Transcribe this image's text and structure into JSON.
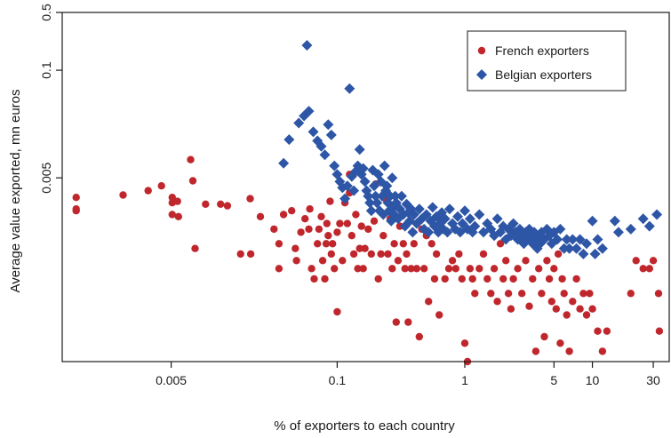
{
  "chart_data": {
    "type": "scatter",
    "title": "",
    "xlabel": "% of exporters to each country",
    "ylabel": "Average value exported, mn euros",
    "x_scale": "log",
    "y_scale": "log",
    "xlim": [
      0.0007,
      40
    ],
    "ylim": [
      3e-05,
      0.5
    ],
    "x_ticks": [
      0.005,
      0.1,
      1,
      5,
      10,
      30
    ],
    "x_tick_labels": [
      "0.005",
      "0.1",
      "1",
      "5",
      "10",
      "30"
    ],
    "y_ticks": [
      0.005,
      0.1,
      0.5
    ],
    "y_tick_labels": [
      "0.005",
      "0.1",
      "0.5"
    ],
    "grid": false,
    "legend_position": "top-right",
    "series": [
      {
        "name": "French exporters",
        "color": "#c0272d",
        "marker": "circle",
        "points": [
          [
            0.0009,
            0.0029
          ],
          [
            0.0009,
            0.0021
          ],
          [
            0.0009,
            0.002
          ],
          [
            0.0021,
            0.0031
          ],
          [
            0.0033,
            0.0035
          ],
          [
            0.0042,
            0.004
          ],
          [
            0.0051,
            0.0029
          ],
          [
            0.0051,
            0.0025
          ],
          [
            0.0051,
            0.0018
          ],
          [
            0.0056,
            0.0026
          ],
          [
            0.0057,
            0.0017
          ],
          [
            0.0071,
            0.0083
          ],
          [
            0.0074,
            0.0046
          ],
          [
            0.0077,
            0.0007
          ],
          [
            0.0093,
            0.0024
          ],
          [
            0.0122,
            0.0024
          ],
          [
            0.0138,
            0.0023
          ],
          [
            0.0175,
            0.0006
          ],
          [
            0.0208,
            0.0028
          ],
          [
            0.021,
            0.0006
          ],
          [
            0.025,
            0.0017
          ],
          [
            0.032,
            0.0012
          ],
          [
            0.035,
            0.0008
          ],
          [
            0.035,
            0.0004
          ],
          [
            0.038,
            0.0018
          ],
          [
            0.044,
            0.002
          ],
          [
            0.047,
            0.0007
          ],
          [
            0.048,
            0.0005
          ],
          [
            0.052,
            0.0011
          ],
          [
            0.056,
            0.0016
          ],
          [
            0.06,
            0.0012
          ],
          [
            0.061,
            0.0021
          ],
          [
            0.063,
            0.0004
          ],
          [
            0.066,
            0.0003
          ],
          [
            0.07,
            0.0008
          ],
          [
            0.072,
            0.0012
          ],
          [
            0.075,
            0.0017
          ],
          [
            0.077,
            0.0005
          ],
          [
            0.08,
            0.0003
          ],
          [
            0.082,
            0.0008
          ],
          [
            0.083,
            0.0014
          ],
          [
            0.085,
            0.001
          ],
          [
            0.088,
            0.0026
          ],
          [
            0.09,
            0.0006
          ],
          [
            0.092,
            0.0008
          ],
          [
            0.095,
            0.0004
          ],
          [
            0.1,
            0.0011
          ],
          [
            0.1,
            0.00012
          ],
          [
            0.105,
            0.0014
          ],
          [
            0.11,
            0.0005
          ],
          [
            0.115,
            0.0025
          ],
          [
            0.12,
            0.0014
          ],
          [
            0.125,
            0.0055
          ],
          [
            0.125,
            0.0033
          ],
          [
            0.13,
            0.001
          ],
          [
            0.135,
            0.0006
          ],
          [
            0.14,
            0.0018
          ],
          [
            0.145,
            0.0004
          ],
          [
            0.15,
            0.0007
          ],
          [
            0.155,
            0.0013
          ],
          [
            0.16,
            0.0004
          ],
          [
            0.165,
            0.0007
          ],
          [
            0.175,
            0.0012
          ],
          [
            0.185,
            0.0006
          ],
          [
            0.195,
            0.0015
          ],
          [
            0.2,
            0.0042
          ],
          [
            0.21,
            0.0003
          ],
          [
            0.22,
            0.0006
          ],
          [
            0.23,
            0.001
          ],
          [
            0.24,
            0.0028
          ],
          [
            0.25,
            0.0006
          ],
          [
            0.26,
            0.0016
          ],
          [
            0.27,
            0.0004
          ],
          [
            0.28,
            0.0008
          ],
          [
            0.29,
            9e-05
          ],
          [
            0.3,
            0.0005
          ],
          [
            0.31,
            0.0013
          ],
          [
            0.33,
            0.0008
          ],
          [
            0.34,
            0.0004
          ],
          [
            0.35,
            0.0006
          ],
          [
            0.36,
            9e-05
          ],
          [
            0.38,
            0.0004
          ],
          [
            0.4,
            0.0008
          ],
          [
            0.42,
            0.0004
          ],
          [
            0.44,
            6e-05
          ],
          [
            0.46,
            0.0012
          ],
          [
            0.48,
            0.0004
          ],
          [
            0.5,
            0.001
          ],
          [
            0.52,
            0.00016
          ],
          [
            0.55,
            0.0008
          ],
          [
            0.58,
            0.0003
          ],
          [
            0.6,
            0.0006
          ],
          [
            0.63,
            0.00011
          ],
          [
            0.66,
            0.0016
          ],
          [
            0.7,
            0.0003
          ],
          [
            0.75,
            0.0004
          ],
          [
            0.8,
            0.0005
          ],
          [
            0.85,
            0.0004
          ],
          [
            0.9,
            0.0006
          ],
          [
            0.95,
            0.0003
          ],
          [
            1.0,
            5e-05
          ],
          [
            1.05,
            3e-05
          ],
          [
            1.1,
            0.0004
          ],
          [
            1.15,
            0.0003
          ],
          [
            1.2,
            0.0002
          ],
          [
            1.3,
            0.0004
          ],
          [
            1.4,
            0.0006
          ],
          [
            1.5,
            0.0003
          ],
          [
            1.6,
            0.0002
          ],
          [
            1.7,
            0.0004
          ],
          [
            1.8,
            0.00016
          ],
          [
            1.9,
            0.0008
          ],
          [
            2.0,
            0.0003
          ],
          [
            2.1,
            0.0005
          ],
          [
            2.2,
            0.0002
          ],
          [
            2.3,
            0.00013
          ],
          [
            2.4,
            0.0003
          ],
          [
            2.6,
            0.0004
          ],
          [
            2.8,
            0.0002
          ],
          [
            3.0,
            0.0005
          ],
          [
            3.2,
            0.00014
          ],
          [
            3.4,
            0.0003
          ],
          [
            3.6,
            4e-05
          ],
          [
            3.8,
            0.0004
          ],
          [
            4.0,
            0.0002
          ],
          [
            4.2,
            6e-05
          ],
          [
            4.4,
            0.0005
          ],
          [
            4.6,
            0.0003
          ],
          [
            4.8,
            0.00016
          ],
          [
            5.0,
            0.0004
          ],
          [
            5.2,
            0.00013
          ],
          [
            5.4,
            0.0006
          ],
          [
            5.6,
            5e-05
          ],
          [
            5.8,
            0.0003
          ],
          [
            6.0,
            0.0002
          ],
          [
            6.3,
            0.00011
          ],
          [
            6.6,
            4e-05
          ],
          [
            7.0,
            0.00016
          ],
          [
            7.5,
            0.0003
          ],
          [
            8.0,
            0.00013
          ],
          [
            8.5,
            0.0002
          ],
          [
            9.0,
            0.00011
          ],
          [
            9.5,
            0.0002
          ],
          [
            10.0,
            0.00013
          ],
          [
            11.0,
            7e-05
          ],
          [
            12.0,
            4e-05
          ],
          [
            13.0,
            7e-05
          ],
          [
            20.0,
            0.0002
          ],
          [
            22.0,
            0.0005
          ],
          [
            25.0,
            0.0004
          ],
          [
            28.0,
            0.0004
          ],
          [
            30.0,
            0.0005
          ],
          [
            33.0,
            0.0002
          ],
          [
            33.5,
            7e-05
          ]
        ]
      },
      {
        "name": "Belgian exporters",
        "color": "#2e56a6",
        "marker": "diamond",
        "points": [
          [
            0.058,
            0.2
          ],
          [
            0.038,
            0.0075
          ],
          [
            0.042,
            0.0145
          ],
          [
            0.05,
            0.023
          ],
          [
            0.055,
            0.028
          ],
          [
            0.06,
            0.032
          ],
          [
            0.065,
            0.018
          ],
          [
            0.07,
            0.014
          ],
          [
            0.075,
            0.012
          ],
          [
            0.08,
            0.0095
          ],
          [
            0.085,
            0.022
          ],
          [
            0.09,
            0.0165
          ],
          [
            0.095,
            0.007
          ],
          [
            0.1,
            0.0055
          ],
          [
            0.105,
            0.0045
          ],
          [
            0.11,
            0.0038
          ],
          [
            0.115,
            0.0028
          ],
          [
            0.12,
            0.004
          ],
          [
            0.125,
            0.06
          ],
          [
            0.13,
            0.0052
          ],
          [
            0.135,
            0.0035
          ],
          [
            0.14,
            0.006
          ],
          [
            0.145,
            0.007
          ],
          [
            0.15,
            0.011
          ],
          [
            0.155,
            0.0055
          ],
          [
            0.16,
            0.0065
          ],
          [
            0.165,
            0.0045
          ],
          [
            0.17,
            0.0035
          ],
          [
            0.175,
            0.003
          ],
          [
            0.18,
            0.0025
          ],
          [
            0.185,
            0.002
          ],
          [
            0.19,
            0.0062
          ],
          [
            0.195,
            0.004
          ],
          [
            0.2,
            0.003
          ],
          [
            0.205,
            0.0025
          ],
          [
            0.21,
            0.0055
          ],
          [
            0.215,
            0.002
          ],
          [
            0.22,
            0.0045
          ],
          [
            0.225,
            0.003
          ],
          [
            0.23,
            0.0018
          ],
          [
            0.235,
            0.007
          ],
          [
            0.24,
            0.0035
          ],
          [
            0.245,
            0.004
          ],
          [
            0.25,
            0.0025
          ],
          [
            0.255,
            0.002
          ],
          [
            0.26,
            0.003
          ],
          [
            0.265,
            0.0015
          ],
          [
            0.27,
            0.005
          ],
          [
            0.275,
            0.0022
          ],
          [
            0.28,
            0.0018
          ],
          [
            0.285,
            0.003
          ],
          [
            0.29,
            0.0025
          ],
          [
            0.3,
            0.0016
          ],
          [
            0.31,
            0.0021
          ],
          [
            0.32,
            0.003
          ],
          [
            0.33,
            0.0018
          ],
          [
            0.34,
            0.0013
          ],
          [
            0.35,
            0.0024
          ],
          [
            0.36,
            0.0019
          ],
          [
            0.37,
            0.0015
          ],
          [
            0.38,
            0.0021
          ],
          [
            0.39,
            0.0011
          ],
          [
            0.4,
            0.0018
          ],
          [
            0.42,
            0.0014
          ],
          [
            0.44,
            0.0021
          ],
          [
            0.46,
            0.0016
          ],
          [
            0.48,
            0.0012
          ],
          [
            0.5,
            0.0018
          ],
          [
            0.52,
            0.0011
          ],
          [
            0.54,
            0.0015
          ],
          [
            0.56,
            0.0022
          ],
          [
            0.58,
            0.0013
          ],
          [
            0.6,
            0.0017
          ],
          [
            0.62,
            0.0011
          ],
          [
            0.64,
            0.0014
          ],
          [
            0.66,
            0.0019
          ],
          [
            0.68,
            0.0012
          ],
          [
            0.7,
            0.0016
          ],
          [
            0.73,
            0.0011
          ],
          [
            0.76,
            0.0021
          ],
          [
            0.8,
            0.0014
          ],
          [
            0.84,
            0.0012
          ],
          [
            0.88,
            0.0017
          ],
          [
            0.92,
            0.0011
          ],
          [
            0.96,
            0.0014
          ],
          [
            1.0,
            0.002
          ],
          [
            1.05,
            0.0012
          ],
          [
            1.1,
            0.0016
          ],
          [
            1.15,
            0.0011
          ],
          [
            1.2,
            0.0013
          ],
          [
            1.3,
            0.0018
          ],
          [
            1.4,
            0.0011
          ],
          [
            1.5,
            0.0014
          ],
          [
            1.6,
            0.0012
          ],
          [
            1.7,
            0.001
          ],
          [
            1.8,
            0.0016
          ],
          [
            1.9,
            0.0011
          ],
          [
            2.0,
            0.0013
          ],
          [
            2.1,
            0.0009
          ],
          [
            2.2,
            0.0012
          ],
          [
            2.3,
            0.001
          ],
          [
            2.4,
            0.0014
          ],
          [
            2.5,
            0.0011
          ],
          [
            2.6,
            0.0009
          ],
          [
            2.7,
            0.0012
          ],
          [
            2.8,
            0.001
          ],
          [
            2.9,
            0.0008
          ],
          [
            3.0,
            0.0011
          ],
          [
            3.1,
            0.0009
          ],
          [
            3.2,
            0.0012
          ],
          [
            3.3,
            0.001
          ],
          [
            3.4,
            0.0008
          ],
          [
            3.5,
            0.0011
          ],
          [
            3.6,
            0.0009
          ],
          [
            3.7,
            0.0007
          ],
          [
            3.8,
            0.001
          ],
          [
            3.9,
            0.0008
          ],
          [
            4.0,
            0.0011
          ],
          [
            4.2,
            0.0009
          ],
          [
            4.4,
            0.0012
          ],
          [
            4.6,
            0.001
          ],
          [
            4.8,
            0.0008
          ],
          [
            5.0,
            0.0011
          ],
          [
            5.3,
            0.0009
          ],
          [
            5.6,
            0.0012
          ],
          [
            6.0,
            0.0007
          ],
          [
            6.3,
            0.0009
          ],
          [
            6.6,
            0.0007
          ],
          [
            7.0,
            0.0009
          ],
          [
            7.5,
            0.0007
          ],
          [
            8.0,
            0.0009
          ],
          [
            8.5,
            0.0006
          ],
          [
            9.0,
            0.0008
          ],
          [
            10.0,
            0.0015
          ],
          [
            10.5,
            0.0006
          ],
          [
            11.0,
            0.0009
          ],
          [
            12.0,
            0.0007
          ],
          [
            15.0,
            0.0015
          ],
          [
            16.0,
            0.0011
          ],
          [
            20.0,
            0.0012
          ],
          [
            25.0,
            0.0016
          ],
          [
            28.0,
            0.0013
          ],
          [
            32.0,
            0.0018
          ]
        ]
      }
    ]
  }
}
